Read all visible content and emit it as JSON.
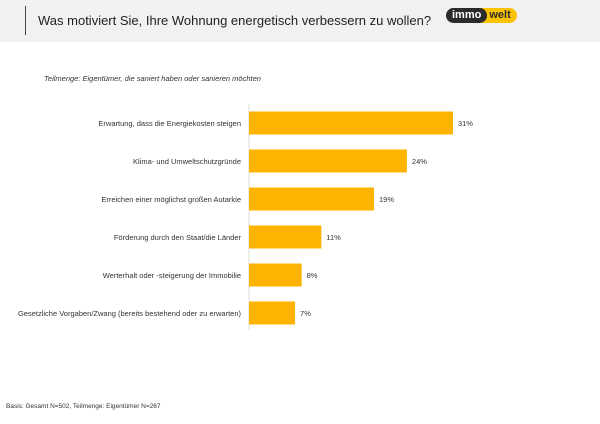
{
  "header": {
    "title": "Was motiviert Sie, Ihre Wohnung energetisch verbessern zu wollen?",
    "logo_text": [
      "immo",
      "welt"
    ]
  },
  "subtitle": "Teilmenge: Eigentümer, die saniert haben oder sanieren möchten",
  "footer": "Basis: Gesamt N=502, Teilmenge: Eigentümer N=267",
  "chart_data": {
    "type": "bar",
    "orientation": "horizontal",
    "categories": [
      "Erwartung, dass die Energiekosten steigen",
      "Klima- und Umweltschutzgründe",
      "Erreichen einer möglichst großen Autarkie",
      "Förderung durch den Staat/die Länder",
      "Werterhalt oder -steigerung der Immobilie",
      "Gesetzliche Vorgaben/Zwang (bereits bestehend oder zu erwarten)"
    ],
    "values": [
      31,
      24,
      19,
      11,
      8,
      7
    ],
    "labels": [
      "31%",
      "24%",
      "19%",
      "11%",
      "8%",
      "7%"
    ],
    "unit": "%",
    "color": "#FDB300",
    "grid": false
  }
}
